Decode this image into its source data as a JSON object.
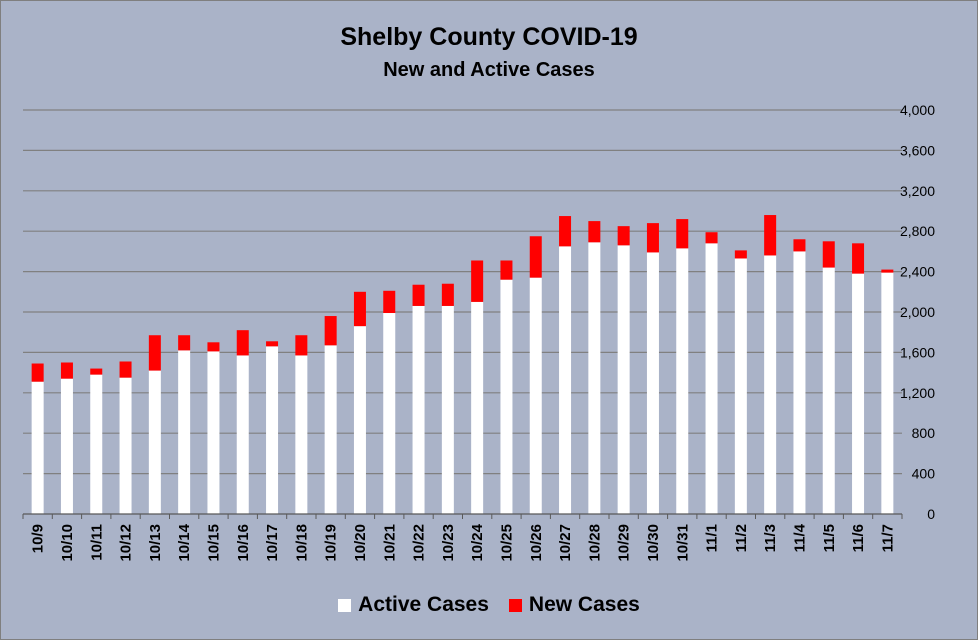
{
  "chart_data": {
    "type": "bar",
    "stacked": true,
    "title": "Shelby County COVID-19",
    "subtitle": "New and Active Cases",
    "categories": [
      "10/9",
      "10/10",
      "10/11",
      "10/12",
      "10/13",
      "10/14",
      "10/15",
      "10/16",
      "10/17",
      "10/18",
      "10/19",
      "10/20",
      "10/21",
      "10/22",
      "10/23",
      "10/24",
      "10/25",
      "10/26",
      "10/27",
      "10/28",
      "10/29",
      "10/30",
      "10/31",
      "11/1",
      "11/2",
      "11/3",
      "11/4",
      "11/5",
      "11/6",
      "11/7"
    ],
    "series": [
      {
        "name": "Active Cases",
        "color": "#ffffff",
        "values": [
          1310,
          1340,
          1380,
          1350,
          1420,
          1620,
          1610,
          1570,
          1660,
          1570,
          1670,
          1860,
          1990,
          2060,
          2060,
          2100,
          2320,
          2340,
          2650,
          2690,
          2660,
          2590,
          2630,
          2680,
          2530,
          2560,
          2600,
          2440,
          2380,
          2390
        ]
      },
      {
        "name": "New Cases",
        "color": "#ff0000",
        "values": [
          180,
          160,
          60,
          160,
          350,
          150,
          90,
          250,
          50,
          200,
          290,
          340,
          220,
          210,
          220,
          410,
          190,
          410,
          300,
          210,
          190,
          290,
          290,
          110,
          80,
          400,
          120,
          260,
          300,
          30
        ]
      }
    ],
    "ylim": [
      0,
      4000
    ],
    "yticks": [
      "0",
      "400",
      "800",
      "1,200",
      "1,600",
      "2,000",
      "2,400",
      "2,800",
      "3,200",
      "3,600",
      "4,000"
    ],
    "ytick_values": [
      0,
      400,
      800,
      1200,
      1600,
      2000,
      2400,
      2800,
      3200,
      3600,
      4000
    ],
    "y_axis_side": "right",
    "grid": true,
    "legend_position": "bottom"
  }
}
